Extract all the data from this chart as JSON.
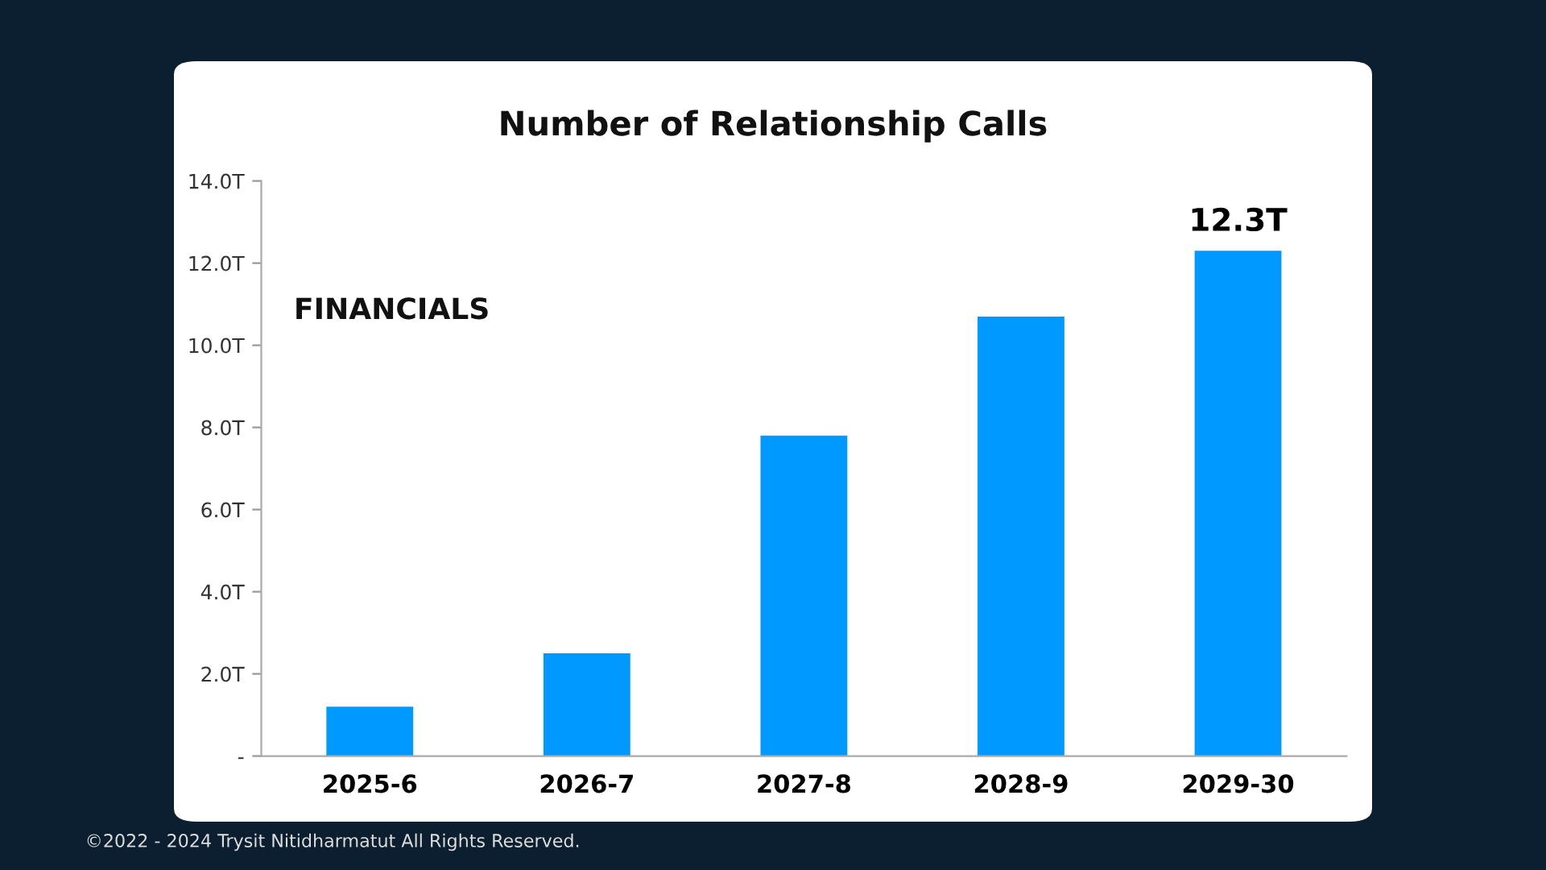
{
  "chart_data": {
    "type": "bar",
    "title": "Number of Relationship Calls",
    "categories": [
      "2025-6",
      "2026-7",
      "2027-8",
      "2028-9",
      "2029-30"
    ],
    "values": [
      1.2,
      2.5,
      7.8,
      10.7,
      12.3
    ],
    "color": "#0099ff",
    "value_labels": [
      null,
      null,
      null,
      null,
      "12.3T"
    ],
    "ylim": [
      0,
      14
    ],
    "yticks": [
      {
        "value": 0,
        "label": "-"
      },
      {
        "value": 2,
        "label": "2.0T"
      },
      {
        "value": 4,
        "label": "4.0T"
      },
      {
        "value": 6,
        "label": "6.0T"
      },
      {
        "value": 8,
        "label": "8.0T"
      },
      {
        "value": 10,
        "label": "10.0T"
      },
      {
        "value": 12,
        "label": "12.0T"
      },
      {
        "value": 14,
        "label": "14.0T"
      }
    ],
    "grid": false,
    "annotations": [
      "FINANCIALS",
      "©2022 - 2024 Trysit Nitidharmatut All Rights Reserved."
    ]
  }
}
